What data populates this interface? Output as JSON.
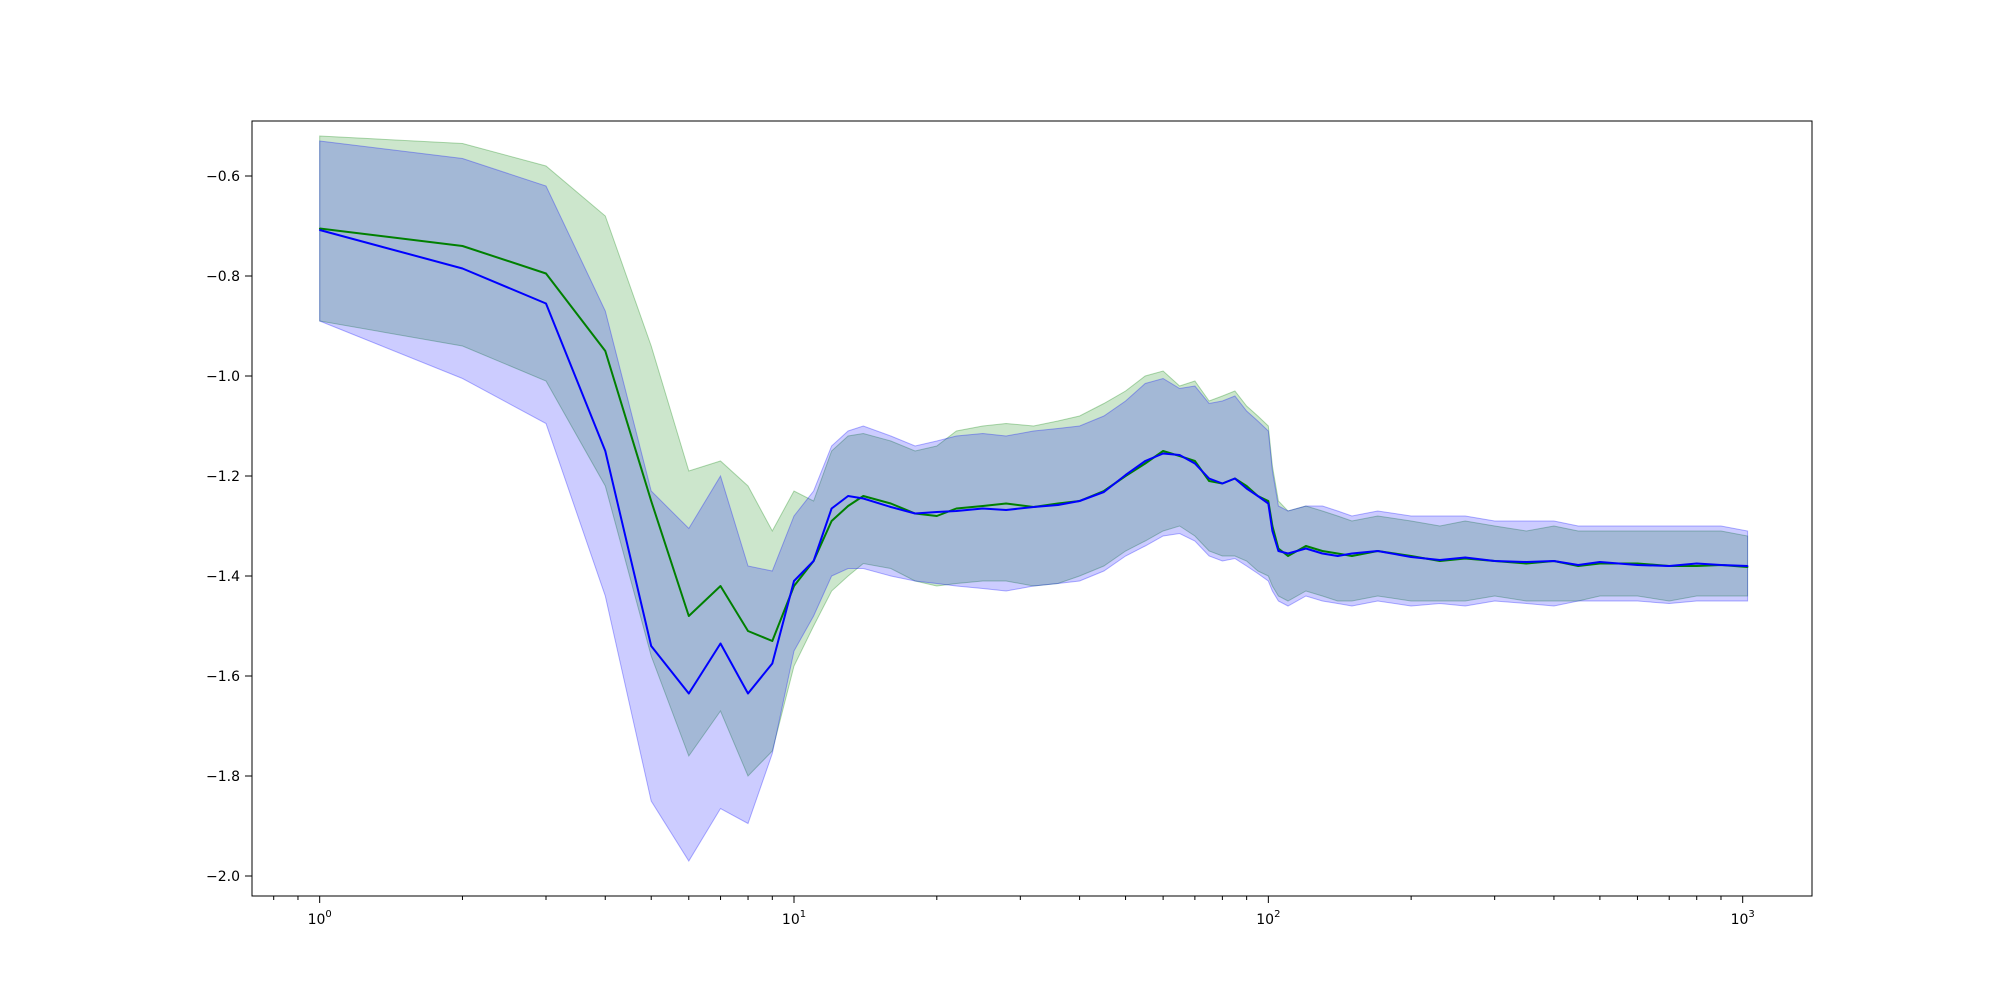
{
  "chart_data": {
    "type": "line",
    "title": "",
    "xlabel": "",
    "ylabel": "",
    "x_scale": "log",
    "xlim": [
      0.72,
      1400
    ],
    "ylim": [
      -2.04,
      -0.49
    ],
    "grid": false,
    "legend": "none",
    "x_ticks": [
      {
        "value": 1,
        "base": "10",
        "exp": "0"
      },
      {
        "value": 10,
        "base": "10",
        "exp": "1"
      },
      {
        "value": 100,
        "base": "10",
        "exp": "2"
      },
      {
        "value": 1000,
        "base": "10",
        "exp": "3"
      }
    ],
    "y_ticks": [
      {
        "value": -0.6,
        "label": "−0.6"
      },
      {
        "value": -0.8,
        "label": "−0.8"
      },
      {
        "value": -1.0,
        "label": "−1.0"
      },
      {
        "value": -1.2,
        "label": "−1.2"
      },
      {
        "value": -1.4,
        "label": "−1.4"
      },
      {
        "value": -1.6,
        "label": "−1.6"
      },
      {
        "value": -1.8,
        "label": "−1.8"
      },
      {
        "value": -2.0,
        "label": "−2.0"
      }
    ],
    "series": [
      {
        "color": "#008000",
        "band_color": "#008000",
        "band_opacity": 0.2,
        "x": [
          1,
          2,
          3,
          4,
          5,
          6,
          7,
          8,
          9,
          10,
          11,
          12,
          13,
          14,
          16,
          18,
          20,
          22,
          25,
          28,
          32,
          36,
          40,
          45,
          50,
          55,
          60,
          65,
          70,
          75,
          80,
          85,
          90,
          95,
          100,
          102,
          105,
          110,
          120,
          130,
          140,
          150,
          170,
          200,
          230,
          260,
          300,
          350,
          400,
          450,
          500,
          600,
          700,
          800,
          900,
          1024
        ],
        "mean": [
          -0.705,
          -0.74,
          -0.795,
          -0.95,
          -1.25,
          -1.48,
          -1.42,
          -1.51,
          -1.53,
          -1.42,
          -1.37,
          -1.29,
          -1.26,
          -1.24,
          -1.255,
          -1.275,
          -1.28,
          -1.265,
          -1.26,
          -1.255,
          -1.262,
          -1.255,
          -1.25,
          -1.23,
          -1.2,
          -1.175,
          -1.15,
          -1.16,
          -1.17,
          -1.21,
          -1.215,
          -1.205,
          -1.22,
          -1.24,
          -1.25,
          -1.3,
          -1.345,
          -1.36,
          -1.34,
          -1.35,
          -1.355,
          -1.36,
          -1.35,
          -1.36,
          -1.37,
          -1.365,
          -1.37,
          -1.375,
          -1.37,
          -1.38,
          -1.375,
          -1.375,
          -1.38,
          -1.38,
          -1.378,
          -1.382
        ],
        "upper": [
          -0.52,
          -0.535,
          -0.58,
          -0.68,
          -0.94,
          -1.19,
          -1.17,
          -1.22,
          -1.31,
          -1.23,
          -1.25,
          -1.15,
          -1.12,
          -1.115,
          -1.13,
          -1.15,
          -1.14,
          -1.11,
          -1.1,
          -1.095,
          -1.1,
          -1.09,
          -1.08,
          -1.055,
          -1.03,
          -1.0,
          -0.99,
          -1.02,
          -1.01,
          -1.05,
          -1.04,
          -1.03,
          -1.06,
          -1.08,
          -1.1,
          -1.18,
          -1.25,
          -1.27,
          -1.26,
          -1.27,
          -1.28,
          -1.29,
          -1.28,
          -1.29,
          -1.3,
          -1.29,
          -1.3,
          -1.31,
          -1.3,
          -1.31,
          -1.31,
          -1.31,
          -1.31,
          -1.31,
          -1.31,
          -1.32
        ],
        "lower": [
          -0.89,
          -0.94,
          -1.01,
          -1.22,
          -1.56,
          -1.76,
          -1.67,
          -1.8,
          -1.75,
          -1.58,
          -1.5,
          -1.43,
          -1.4,
          -1.375,
          -1.385,
          -1.41,
          -1.42,
          -1.415,
          -1.41,
          -1.41,
          -1.42,
          -1.415,
          -1.4,
          -1.38,
          -1.35,
          -1.33,
          -1.31,
          -1.3,
          -1.32,
          -1.35,
          -1.36,
          -1.36,
          -1.37,
          -1.39,
          -1.4,
          -1.42,
          -1.44,
          -1.45,
          -1.43,
          -1.44,
          -1.45,
          -1.45,
          -1.44,
          -1.45,
          -1.45,
          -1.45,
          -1.44,
          -1.45,
          -1.45,
          -1.45,
          -1.44,
          -1.44,
          -1.45,
          -1.44,
          -1.44,
          -1.44
        ]
      },
      {
        "color": "#0000ff",
        "band_color": "#0000ff",
        "band_opacity": 0.2,
        "x": [
          1,
          2,
          3,
          4,
          5,
          6,
          7,
          8,
          9,
          10,
          11,
          12,
          13,
          14,
          16,
          18,
          20,
          22,
          25,
          28,
          32,
          36,
          40,
          45,
          50,
          55,
          60,
          65,
          70,
          75,
          80,
          85,
          90,
          95,
          100,
          102,
          105,
          110,
          120,
          130,
          140,
          150,
          170,
          200,
          230,
          260,
          300,
          350,
          400,
          450,
          500,
          600,
          700,
          800,
          900,
          1024
        ],
        "mean": [
          -0.708,
          -0.785,
          -0.855,
          -1.15,
          -1.54,
          -1.635,
          -1.535,
          -1.635,
          -1.575,
          -1.41,
          -1.37,
          -1.265,
          -1.24,
          -1.245,
          -1.262,
          -1.275,
          -1.272,
          -1.27,
          -1.265,
          -1.268,
          -1.262,
          -1.258,
          -1.25,
          -1.232,
          -1.198,
          -1.17,
          -1.155,
          -1.158,
          -1.175,
          -1.205,
          -1.215,
          -1.205,
          -1.225,
          -1.24,
          -1.255,
          -1.31,
          -1.35,
          -1.355,
          -1.345,
          -1.355,
          -1.36,
          -1.355,
          -1.35,
          -1.362,
          -1.368,
          -1.363,
          -1.37,
          -1.372,
          -1.37,
          -1.378,
          -1.372,
          -1.378,
          -1.38,
          -1.375,
          -1.378,
          -1.38
        ],
        "upper": [
          -0.53,
          -0.565,
          -0.62,
          -0.87,
          -1.23,
          -1.305,
          -1.2,
          -1.38,
          -1.39,
          -1.28,
          -1.23,
          -1.14,
          -1.11,
          -1.1,
          -1.12,
          -1.14,
          -1.13,
          -1.12,
          -1.115,
          -1.12,
          -1.11,
          -1.105,
          -1.1,
          -1.08,
          -1.05,
          -1.015,
          -1.005,
          -1.025,
          -1.02,
          -1.055,
          -1.05,
          -1.04,
          -1.07,
          -1.09,
          -1.11,
          -1.19,
          -1.26,
          -1.27,
          -1.26,
          -1.26,
          -1.27,
          -1.28,
          -1.27,
          -1.28,
          -1.28,
          -1.28,
          -1.29,
          -1.29,
          -1.29,
          -1.3,
          -1.3,
          -1.3,
          -1.3,
          -1.3,
          -1.3,
          -1.31
        ],
        "lower": [
          -0.89,
          -1.005,
          -1.095,
          -1.44,
          -1.85,
          -1.97,
          -1.865,
          -1.895,
          -1.755,
          -1.55,
          -1.48,
          -1.4,
          -1.385,
          -1.385,
          -1.4,
          -1.41,
          -1.415,
          -1.42,
          -1.425,
          -1.43,
          -1.42,
          -1.415,
          -1.41,
          -1.39,
          -1.36,
          -1.34,
          -1.32,
          -1.315,
          -1.33,
          -1.36,
          -1.37,
          -1.365,
          -1.38,
          -1.395,
          -1.41,
          -1.43,
          -1.45,
          -1.46,
          -1.44,
          -1.45,
          -1.455,
          -1.46,
          -1.45,
          -1.46,
          -1.455,
          -1.46,
          -1.45,
          -1.455,
          -1.46,
          -1.45,
          -1.45,
          -1.45,
          -1.455,
          -1.45,
          -1.45,
          -1.45
        ]
      }
    ]
  }
}
